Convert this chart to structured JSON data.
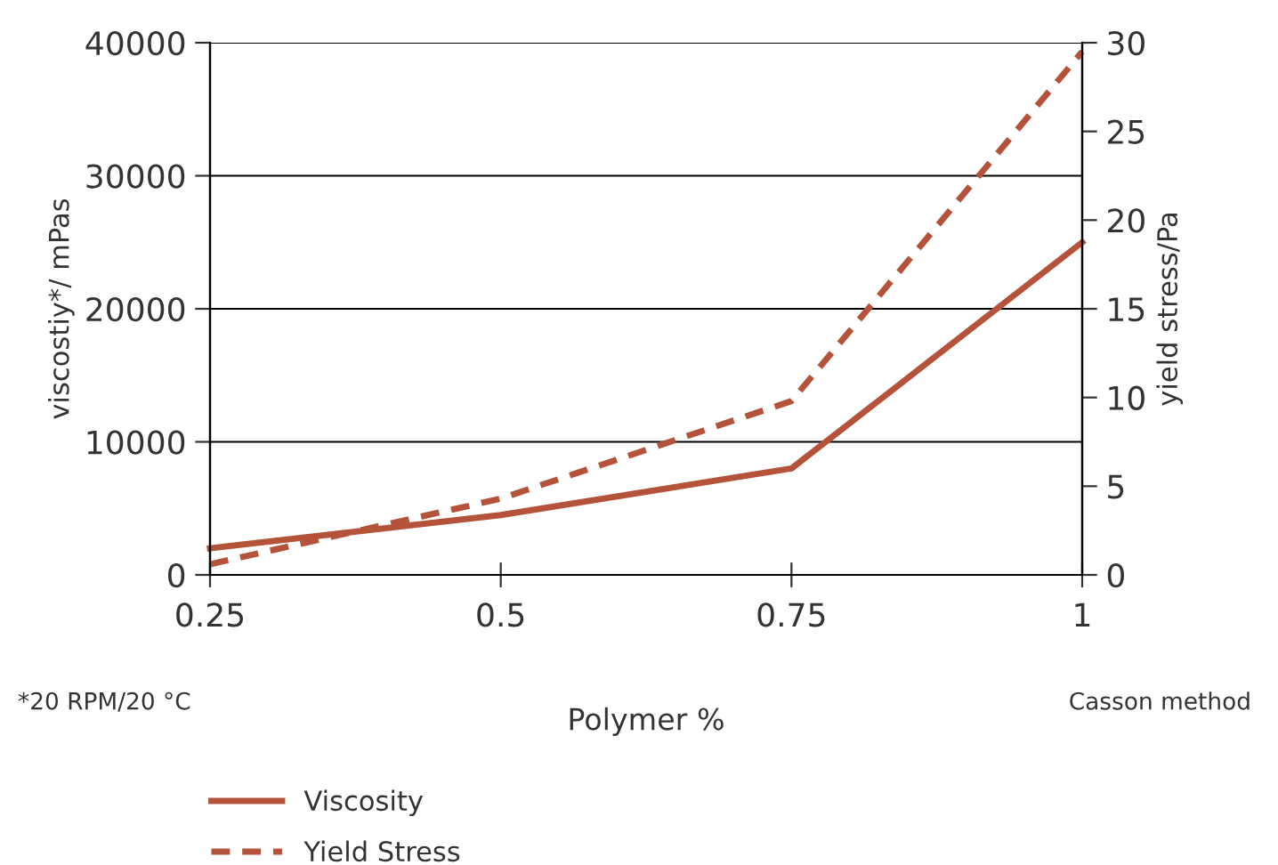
{
  "chart_data": {
    "type": "line",
    "xlabel": "Polymer %",
    "ylabel": "viscostiy*/ mPas",
    "y2label": "yield stress/Pa",
    "x": [
      0.25,
      0.5,
      0.75,
      1
    ],
    "series": [
      {
        "name": "Viscosity",
        "color": "#b5533a",
        "values": [
          2000,
          4500,
          8000,
          25000
        ],
        "line_style": "solid"
      },
      {
        "name": "Yield Stress",
        "color": "#b5533a",
        "values": [
          0.6,
          4.3,
          9.8,
          29.5
        ],
        "line_style": "dashed",
        "axis": "y2"
      }
    ],
    "xlim": [
      0.25,
      1
    ],
    "xticks": [
      0.25,
      0.5,
      0.75,
      1
    ],
    "ylim": [
      0,
      40000
    ],
    "yticks": [
      0,
      10000,
      20000,
      30000,
      40000
    ],
    "y2lim": [
      0,
      30
    ],
    "y2ticks": [
      0,
      5,
      10,
      15,
      20,
      25,
      30
    ],
    "grid": "y",
    "legend": "bottom",
    "marker": "none",
    "annotations": [
      "*20 RPM/20 °C",
      "Casson method"
    ]
  }
}
